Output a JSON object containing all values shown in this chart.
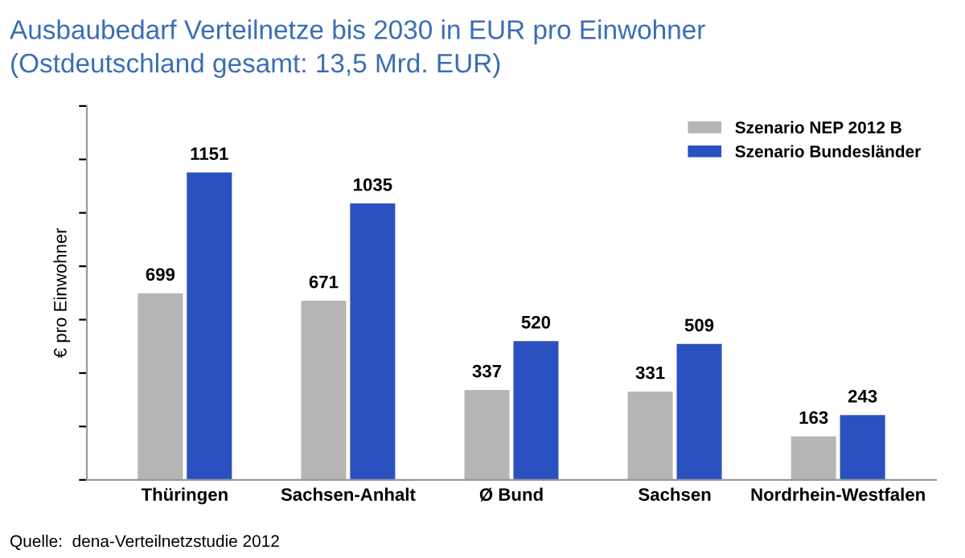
{
  "chart_data": {
    "type": "bar",
    "title": "Ausbaubedarf Verteilnetze bis 2030 in EUR pro Einwohner",
    "subtitle": "(Ostdeutschland gesamt: 13,5 Mrd. EUR)",
    "ylabel": "€ pro Einwohner",
    "categories": [
      "Thüringen",
      "Sachsen-Anhalt",
      "Ø Bund",
      "Sachsen",
      "Nordrhein-Westfalen"
    ],
    "series": [
      {
        "name": "Szenario NEP 2012 B",
        "color": "#b5b5b5",
        "values": [
          699,
          671,
          337,
          331,
          163
        ]
      },
      {
        "name": "Szenario Bundesländer",
        "color": "#2b50c0",
        "values": [
          1151,
          1035,
          520,
          509,
          243
        ]
      }
    ],
    "ylim": [
      0,
      1400
    ],
    "yticks": [
      {
        "value": 0,
        "label": null
      },
      {
        "value": 200,
        "label": null
      },
      {
        "value": 400,
        "label": null
      },
      {
        "value": 600,
        "label": null
      },
      {
        "value": 800,
        "label": null
      },
      {
        "value": 1000,
        "label": null
      },
      {
        "value": 1200,
        "label": null
      },
      {
        "value": 1400,
        "label": null
      }
    ],
    "tick_labels": "x",
    "data_labels": true,
    "legend": "top right",
    "grid": false,
    "annotations": [
      "Quelle:  dena-Verteilnetzstudie 2012"
    ]
  }
}
